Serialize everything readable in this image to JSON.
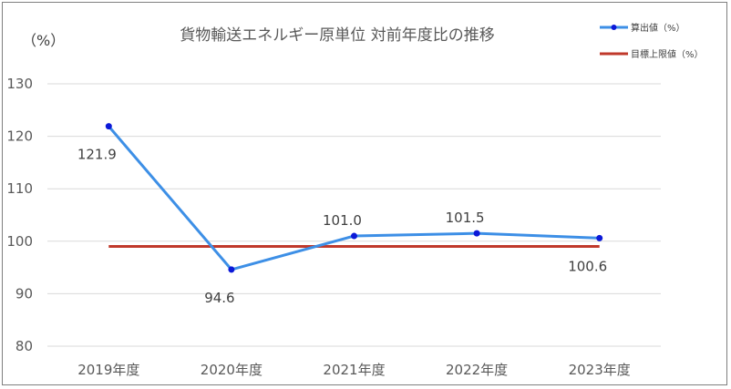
{
  "chart_data": {
    "type": "line",
    "title": "貨物輸送エネルギー原単位 対前年度比の推移",
    "ylabel": "（%）",
    "categories": [
      "2019年度",
      "2020年度",
      "2021年度",
      "2022年度",
      "2023年度"
    ],
    "series": [
      {
        "name": "算出値（%）",
        "values": [
          121.9,
          94.6,
          101.0,
          101.5,
          100.6
        ],
        "labels": [
          "121.9",
          "94.6",
          "101.0",
          "101.5",
          "100.6"
        ],
        "color": "#3d8fe6",
        "marker_color": "#0b19d8"
      },
      {
        "name": "目標上限値（%）",
        "values": [
          99,
          99,
          99,
          99,
          99
        ],
        "color": "#c0392b"
      }
    ],
    "ylim": [
      80,
      130
    ],
    "yticks": [
      80,
      90,
      100,
      110,
      120,
      130
    ],
    "grid": true,
    "legend": "top-right"
  }
}
